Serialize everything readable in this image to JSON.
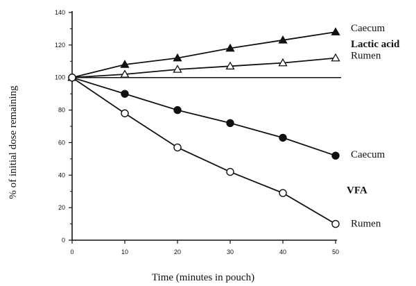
{
  "chart_data": {
    "type": "line",
    "title": "",
    "xlabel": "Time (minutes in pouch)",
    "ylabel": "% of initial dose remaining",
    "xlim": [
      0,
      50
    ],
    "ylim": [
      0,
      140
    ],
    "x_ticks": [
      0,
      10,
      20,
      30,
      40,
      50
    ],
    "y_ticks": [
      0,
      20,
      40,
      60,
      80,
      100,
      120,
      140
    ],
    "grid": false,
    "reference_line": {
      "y": 100
    },
    "x": [
      0,
      10,
      20,
      30,
      40,
      50
    ],
    "series": [
      {
        "id": "lactic-caecum",
        "name": "Caecum",
        "marker": "triangle",
        "filled": true,
        "values": [
          100,
          108,
          112,
          118,
          123,
          128
        ]
      },
      {
        "id": "lactic-rumen",
        "name": "Rumen",
        "marker": "triangle",
        "filled": false,
        "values": [
          100,
          102,
          105,
          107,
          109,
          112
        ]
      },
      {
        "id": "vfa-caecum",
        "name": "Caecum",
        "marker": "circle",
        "filled": true,
        "values": [
          100,
          90,
          80,
          72,
          63,
          52
        ]
      },
      {
        "id": "vfa-rumen",
        "name": "Rumen",
        "marker": "circle",
        "filled": false,
        "values": [
          100,
          78,
          57,
          42,
          29,
          10
        ]
      }
    ],
    "group_labels": [
      {
        "text": "Lactic acid",
        "series": [
          "lactic-caecum",
          "lactic-rumen"
        ]
      },
      {
        "text": "VFA",
        "series": [
          "vfa-caecum",
          "vfa-rumen"
        ]
      }
    ]
  }
}
